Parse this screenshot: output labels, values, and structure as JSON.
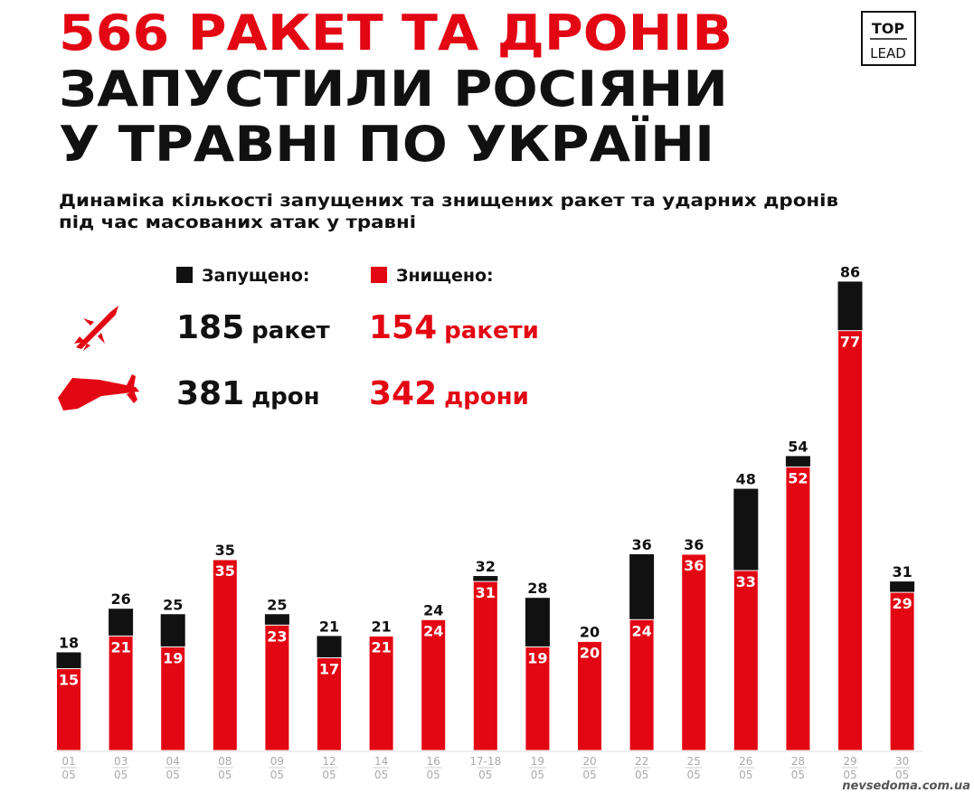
{
  "chart_data": {
    "type": "overlay-bar",
    "title": [
      "566 РАКЕТ ТА ДРОНІВ",
      "ЗАПУСТИЛИ РОСІЯНИ",
      "У ТРАВНІ ПО УКРАЇНІ"
    ],
    "subtitle": [
      "Динаміка кількості запущених та знищених ракет та ударних дронів",
      "під час масованих атак у травні"
    ],
    "categories": [
      [
        "01",
        "05"
      ],
      [
        "03",
        "05"
      ],
      [
        "04",
        "05"
      ],
      [
        "08",
        "05"
      ],
      [
        "09",
        "05"
      ],
      [
        "12",
        "05"
      ],
      [
        "14",
        "05"
      ],
      [
        "16",
        "05"
      ],
      [
        "17-18",
        "05"
      ],
      [
        "19",
        "05"
      ],
      [
        "20",
        "05"
      ],
      [
        "22",
        "05"
      ],
      [
        "25",
        "05"
      ],
      [
        "26",
        "05"
      ],
      [
        "28",
        "05"
      ],
      [
        "29",
        "05"
      ],
      [
        "30",
        "05"
      ]
    ],
    "series": [
      {
        "name": "Запущено:",
        "color": "#111111",
        "values": [
          18,
          26,
          25,
          35,
          25,
          21,
          21,
          24,
          32,
          28,
          20,
          36,
          36,
          48,
          54,
          86,
          31
        ]
      },
      {
        "name": "Знищено:",
        "color": "#e30613",
        "values": [
          15,
          21,
          19,
          35,
          23,
          17,
          21,
          24,
          31,
          19,
          20,
          24,
          36,
          33,
          52,
          77,
          29
        ]
      }
    ]
  },
  "summary": {
    "rockets": {
      "launched": 185,
      "launched_unit": "ракет",
      "destroyed": 154,
      "destroyed_unit": "ракети"
    },
    "drones": {
      "launched": 381,
      "launched_unit": "дрон",
      "destroyed": 342,
      "destroyed_unit": "дрони"
    }
  },
  "logo": [
    "TOP",
    "LEAD"
  ],
  "watermark": "nevsedoma.com.ua"
}
